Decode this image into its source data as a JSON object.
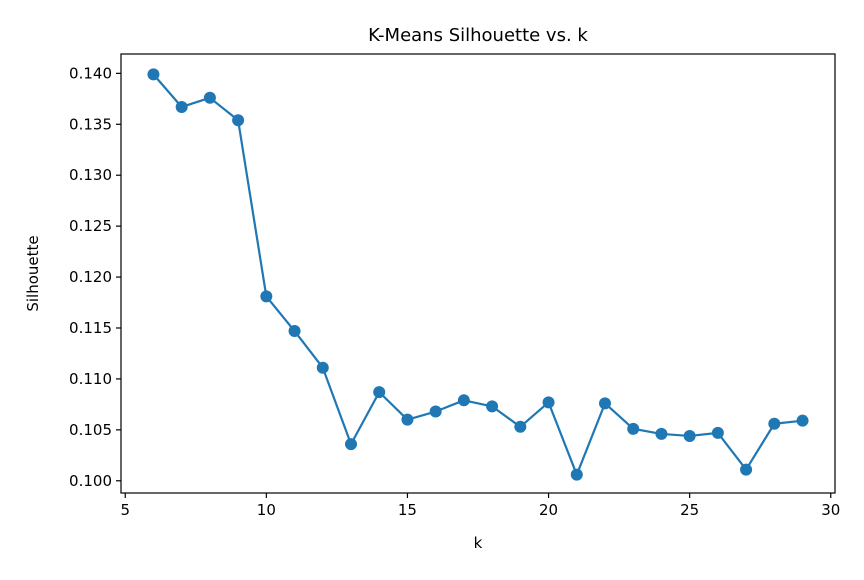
{
  "chart_data": {
    "type": "line",
    "title": "K-Means Silhouette vs. k",
    "xlabel": "k",
    "ylabel": "Silhouette",
    "xlim": [
      4.85,
      30.15
    ],
    "ylim": [
      0.0988,
      0.1419
    ],
    "xticks": [
      5,
      10,
      15,
      20,
      25,
      30
    ],
    "yticks": [
      0.1,
      0.105,
      0.11,
      0.115,
      0.12,
      0.125,
      0.13,
      0.135,
      0.14
    ],
    "xtick_labels": [
      "5",
      "10",
      "15",
      "20",
      "25",
      "30"
    ],
    "ytick_labels": [
      "0.100",
      "0.105",
      "0.110",
      "0.115",
      "0.120",
      "0.125",
      "0.130",
      "0.135",
      "0.140"
    ],
    "grid": false,
    "marker": "circle",
    "series": [
      {
        "color": "#1f77b4",
        "x": [
          6,
          7,
          8,
          9,
          10,
          11,
          12,
          13,
          14,
          15,
          16,
          17,
          18,
          19,
          20,
          21,
          22,
          23,
          24,
          25,
          26,
          27,
          28,
          29
        ],
        "y": [
          0.1399,
          0.1367,
          0.1376,
          0.1354,
          0.1181,
          0.1147,
          0.1111,
          0.1036,
          0.1087,
          0.106,
          0.1068,
          0.1079,
          0.1073,
          0.1053,
          0.1077,
          0.1006,
          0.1076,
          0.1051,
          0.1046,
          0.1044,
          0.1047,
          0.1011,
          0.1056,
          0.1059
        ]
      }
    ]
  }
}
